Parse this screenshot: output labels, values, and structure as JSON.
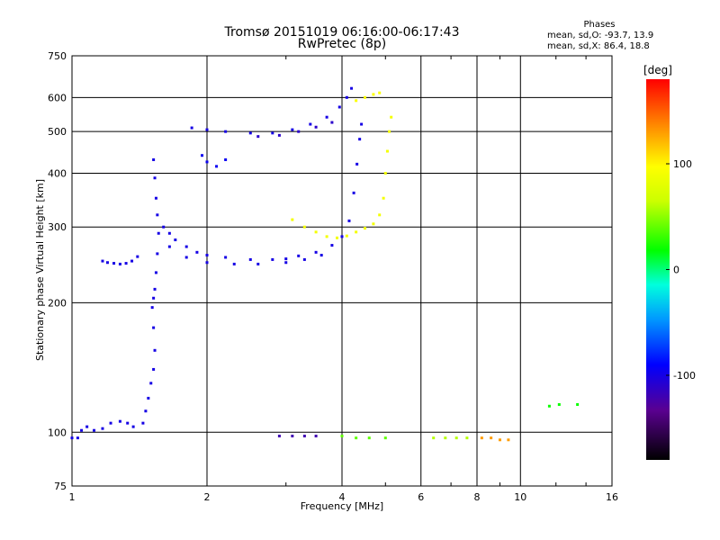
{
  "chart_data": {
    "type": "scatter",
    "title": "Tromsø 20151019 06:16:00-06:17:43",
    "subtitle": "RwPretec (8p)",
    "xlabel": "Frequency [MHz]",
    "ylabel": "Stationary phase Virtual Height [km]",
    "x_scale": "log",
    "y_scale": "log",
    "xlim": [
      1,
      16
    ],
    "ylim": [
      75,
      750
    ],
    "x_ticks": [
      1,
      2,
      4,
      6,
      8,
      10,
      16
    ],
    "y_ticks": [
      75,
      100,
      200,
      300,
      400,
      500,
      600,
      750
    ],
    "grid": true,
    "phase_stats": {
      "heading": "Phases",
      "line_o": "mean, sd,O: -93.7, 13.9",
      "line_x": "mean, sd,X:  86.4, 18.8"
    },
    "colorbar": {
      "label": "[deg]",
      "ticks": [
        100,
        0,
        -100
      ],
      "range": [
        -180,
        180
      ]
    },
    "series": [
      {
        "phase": -100,
        "points": [
          [
            1.0,
            97
          ],
          [
            1.03,
            97
          ],
          [
            1.05,
            101
          ],
          [
            1.08,
            103
          ],
          [
            1.12,
            101
          ],
          [
            1.17,
            102
          ],
          [
            1.22,
            105
          ],
          [
            1.28,
            106
          ],
          [
            1.33,
            105
          ],
          [
            1.37,
            103
          ]
        ]
      },
      {
        "phase": -100,
        "points": [
          [
            1.17,
            250
          ],
          [
            1.2,
            248
          ],
          [
            1.24,
            247
          ],
          [
            1.28,
            246
          ],
          [
            1.32,
            247
          ],
          [
            1.36,
            250
          ],
          [
            1.4,
            256
          ]
        ]
      },
      {
        "phase": -100,
        "points": [
          [
            1.52,
            430
          ],
          [
            1.53,
            390
          ],
          [
            1.54,
            350
          ],
          [
            1.55,
            320
          ],
          [
            1.56,
            290
          ],
          [
            1.55,
            260
          ],
          [
            1.54,
            235
          ],
          [
            1.53,
            215
          ],
          [
            1.52,
            205
          ],
          [
            1.51,
            195
          ],
          [
            1.52,
            175
          ],
          [
            1.53,
            155
          ],
          [
            1.52,
            140
          ],
          [
            1.5,
            130
          ],
          [
            1.48,
            120
          ],
          [
            1.46,
            112
          ],
          [
            1.44,
            105
          ]
        ]
      },
      {
        "phase": -100,
        "points": [
          [
            1.6,
            300
          ],
          [
            1.65,
            290
          ],
          [
            1.7,
            280
          ],
          [
            1.8,
            270
          ],
          [
            1.9,
            262
          ],
          [
            2.0,
            258
          ],
          [
            2.2,
            255
          ],
          [
            2.5,
            252
          ],
          [
            2.8,
            252
          ],
          [
            3.0,
            253
          ],
          [
            3.2,
            257
          ],
          [
            3.5,
            262
          ],
          [
            3.8,
            272
          ],
          [
            4.0,
            285
          ],
          [
            4.15,
            310
          ],
          [
            4.25,
            360
          ],
          [
            4.32,
            420
          ],
          [
            4.38,
            480
          ],
          [
            4.42,
            520
          ]
        ]
      },
      {
        "phase": -100,
        "points": [
          [
            1.65,
            270
          ],
          [
            1.8,
            255
          ],
          [
            2.0,
            248
          ],
          [
            2.3,
            246
          ],
          [
            2.6,
            246
          ],
          [
            3.0,
            248
          ],
          [
            3.3,
            252
          ],
          [
            3.6,
            258
          ]
        ]
      },
      {
        "phase": -100,
        "points": [
          [
            1.85,
            510
          ],
          [
            2.0,
            505
          ],
          [
            2.2,
            500
          ],
          [
            2.5,
            496
          ],
          [
            2.8,
            496
          ],
          [
            3.1,
            505
          ],
          [
            3.4,
            520
          ],
          [
            3.7,
            540
          ],
          [
            3.95,
            570
          ],
          [
            4.1,
            600
          ],
          [
            4.2,
            630
          ]
        ]
      },
      {
        "phase": -110,
        "points": [
          [
            2.6,
            487
          ],
          [
            2.9,
            490
          ],
          [
            3.2,
            500
          ],
          [
            3.5,
            512
          ],
          [
            3.8,
            525
          ]
        ]
      },
      {
        "phase": -95,
        "points": [
          [
            1.95,
            440
          ],
          [
            2.0,
            425
          ],
          [
            2.1,
            415
          ],
          [
            2.2,
            430
          ]
        ]
      },
      {
        "phase": 90,
        "points": [
          [
            3.1,
            312
          ],
          [
            3.3,
            300
          ],
          [
            3.5,
            292
          ],
          [
            3.7,
            285
          ],
          [
            3.9,
            283
          ],
          [
            4.1,
            286
          ],
          [
            4.3,
            292
          ],
          [
            4.5,
            298
          ],
          [
            4.7,
            305
          ],
          [
            4.85,
            320
          ],
          [
            4.95,
            350
          ],
          [
            5.0,
            400
          ],
          [
            5.05,
            450
          ],
          [
            5.1,
            500
          ],
          [
            5.15,
            540
          ]
        ]
      },
      {
        "phase": 95,
        "points": [
          [
            4.3,
            590
          ],
          [
            4.5,
            600
          ],
          [
            4.7,
            610
          ],
          [
            4.85,
            615
          ]
        ]
      },
      {
        "phase": -120,
        "points": [
          [
            2.9,
            98
          ],
          [
            3.1,
            98
          ],
          [
            3.3,
            98
          ],
          [
            3.5,
            98
          ]
        ]
      },
      {
        "phase": 40,
        "points": [
          [
            4.0,
            98
          ],
          [
            4.3,
            97
          ],
          [
            4.6,
            97
          ],
          [
            5.0,
            97
          ]
        ]
      },
      {
        "phase": 60,
        "points": [
          [
            6.4,
            97
          ],
          [
            6.8,
            97
          ],
          [
            7.2,
            97
          ],
          [
            7.6,
            97
          ]
        ]
      },
      {
        "phase": 130,
        "points": [
          [
            8.2,
            97
          ],
          [
            8.6,
            97
          ],
          [
            9.0,
            96
          ],
          [
            9.4,
            96
          ]
        ]
      },
      {
        "phase": 20,
        "points": [
          [
            11.6,
            115
          ],
          [
            12.2,
            116
          ],
          [
            13.4,
            116
          ]
        ]
      }
    ]
  }
}
